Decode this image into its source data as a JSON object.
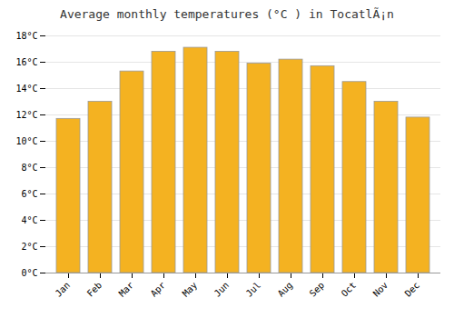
{
  "chart_data": {
    "type": "bar",
    "title": "Average monthly temperatures (°C ) in TocatlÃ¡n",
    "categories": [
      "Jan",
      "Feb",
      "Mar",
      "Apr",
      "May",
      "Jun",
      "Jul",
      "Aug",
      "Sep",
      "Oct",
      "Nov",
      "Dec"
    ],
    "values": [
      11.7,
      13.0,
      15.3,
      16.8,
      17.1,
      16.8,
      15.9,
      16.2,
      15.7,
      14.5,
      13.0,
      11.8
    ],
    "color": "#F4B221",
    "ylim": [
      0,
      18
    ],
    "yticks": [
      {
        "value": 0,
        "label": "0°C"
      },
      {
        "value": 2,
        "label": "2°C"
      },
      {
        "value": 4,
        "label": "4°C"
      },
      {
        "value": 6,
        "label": "6°C"
      },
      {
        "value": 8,
        "label": "8°C"
      },
      {
        "value": 10,
        "label": "10°C"
      },
      {
        "value": 12,
        "label": "12°C"
      },
      {
        "value": 14,
        "label": "14°C"
      },
      {
        "value": 16,
        "label": "16°C"
      },
      {
        "value": 18,
        "label": "18°C"
      }
    ],
    "grid": true
  }
}
